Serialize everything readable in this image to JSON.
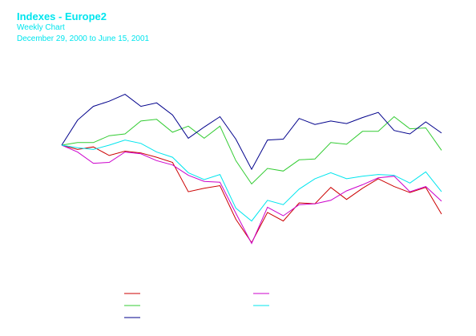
{
  "header": {
    "title": "Indexes - Europe2",
    "subtitle": "Weekly Chart",
    "date_range": "December 29, 2000 to June 15, 2001"
  },
  "chart_data": {
    "type": "line",
    "title": "Indexes - Europe2",
    "subtitle": "Weekly Chart",
    "xlabel": "",
    "ylabel": "",
    "x": [
      0,
      1,
      2,
      3,
      4,
      5,
      6,
      7,
      8,
      9,
      10,
      11,
      12,
      13,
      14,
      15,
      16,
      17,
      18,
      19,
      20,
      21,
      22,
      23,
      24
    ],
    "ylim": [
      -14,
      7
    ],
    "grid": false,
    "legend_position": "bottom",
    "series": [
      {
        "name": "",
        "color": "#cc0000",
        "values": [
          0,
          -0.5,
          -0.2,
          -1.2,
          -0.7,
          -0.9,
          -1.4,
          -2.0,
          -5.4,
          -5.0,
          -4.7,
          -8.6,
          -11.3,
          -7.8,
          -8.8,
          -6.7,
          -6.8,
          -4.9,
          -6.3,
          -5.0,
          -3.9,
          -4.8,
          -5.5,
          -4.9,
          -8.0
        ]
      },
      {
        "name": "",
        "color": "#cc00cc",
        "values": [
          0,
          -0.8,
          -2.1,
          -2.0,
          -0.8,
          -1.0,
          -1.8,
          -2.3,
          -3.5,
          -4.2,
          -4.3,
          -7.9,
          -11.4,
          -7.2,
          -8.2,
          -6.9,
          -6.8,
          -6.4,
          -5.3,
          -4.6,
          -3.8,
          -3.6,
          -5.4,
          -4.8,
          -6.5
        ]
      },
      {
        "name": "",
        "color": "#33cc33",
        "values": [
          0,
          0.3,
          0.3,
          1.1,
          1.3,
          2.8,
          3.0,
          1.5,
          2.2,
          0.8,
          2.2,
          -1.8,
          -4.5,
          -2.7,
          -3.0,
          -1.7,
          -1.6,
          0.3,
          0.1,
          1.6,
          1.6,
          3.3,
          1.9,
          2.0,
          -0.6
        ]
      },
      {
        "name": "",
        "color": "#00008b",
        "values": [
          0,
          2.9,
          4.5,
          5.1,
          5.9,
          4.5,
          4.9,
          3.5,
          0.8,
          2.1,
          3.3,
          0.7,
          -2.8,
          0.6,
          0.7,
          3.1,
          2.4,
          2.8,
          2.5,
          3.2,
          3.8,
          1.7,
          1.3,
          2.7,
          1.4
        ]
      },
      {
        "name": "",
        "color": "#00e5ee",
        "values": [
          0,
          -0.3,
          -0.5,
          0,
          0.6,
          0.2,
          -0.8,
          -1.4,
          -3.2,
          -4.0,
          -3.4,
          -7.3,
          -8.8,
          -6.4,
          -6.9,
          -5.1,
          -3.9,
          -3.2,
          -3.9,
          -3.6,
          -3.4,
          -3.5,
          -4.4,
          -3.1,
          -5.4
        ]
      }
    ]
  }
}
